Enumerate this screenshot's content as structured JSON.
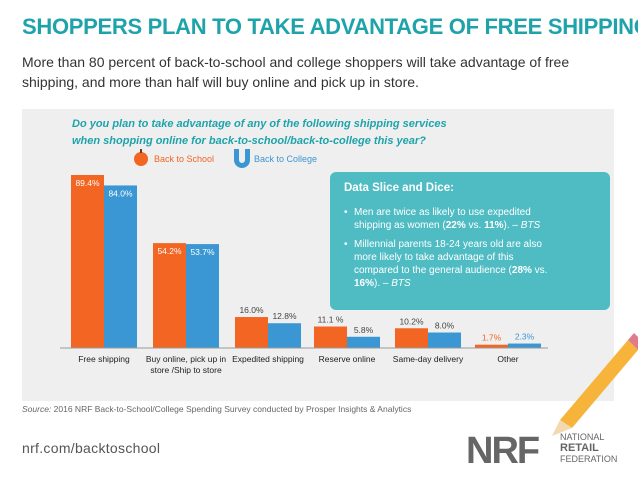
{
  "header": {
    "title": "SHOPPERS PLAN TO TAKE ADVANTAGE OF FREE SHIPPING",
    "subtitle": "More than 80 percent of back-to-school and college shoppers will take advantage of free shipping, and more than half will buy online and pick up in store."
  },
  "chart_data": {
    "type": "bar",
    "title": "Do you plan to take advantage of any of the following shipping services when shopping online for back-to-school/back-to-college this year?",
    "categories": [
      "Free shipping",
      "Buy online, pick up in store /Ship to store",
      "Expedited shipping",
      "Reserve online",
      "Same-day delivery",
      "Other"
    ],
    "series": [
      {
        "name": "Back to School",
        "color": "#f26522",
        "values": [
          89.4,
          54.2,
          16.0,
          11.1,
          10.2,
          1.7
        ],
        "value_labels": [
          "89.4%",
          "54.2%",
          "16.0%",
          "11.1 %",
          "10.2%",
          "1.7%"
        ]
      },
      {
        "name": "Back to College",
        "color": "#3b97d3",
        "values": [
          84.0,
          53.7,
          12.8,
          5.8,
          8.0,
          2.3
        ],
        "value_labels": [
          "84.0%",
          "53.7%",
          "12.8%",
          "5.8%",
          "8.0%",
          "2.3%"
        ]
      }
    ]
  },
  "callout": {
    "title": "Data Slice and Dice:",
    "bullets": [
      [
        "Men are twice as likely to use expedited shipping as women (",
        "22%",
        " vs. ",
        "11%",
        "). – ",
        "BTS"
      ],
      [
        "Millennial parents 18-24 years old are also more likely to take advantage of this compared to the general audience (",
        "28%",
        " vs. ",
        "16%",
        "). – ",
        "BTS"
      ]
    ]
  },
  "source": {
    "label": "Source:",
    "text": " 2016 NRF Back-to-School/College Spending Survey conducted by Prosper Insights & Analytics"
  },
  "footer": {
    "url": "nrf.com/backtoschool",
    "logo": "NRF",
    "logo_text": [
      "NATIONAL",
      "RETAIL",
      "FEDERATION"
    ]
  }
}
